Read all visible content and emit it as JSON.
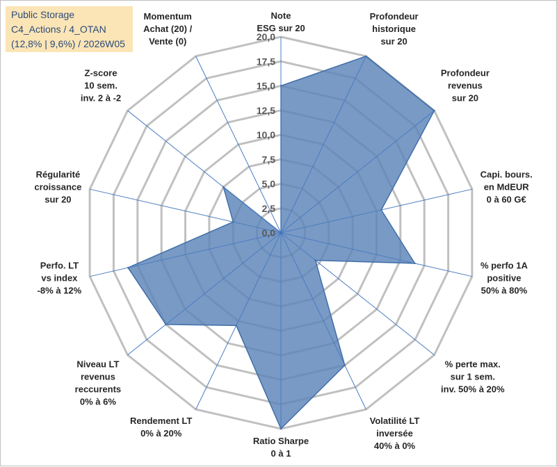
{
  "title": {
    "line1": "Public Storage",
    "line2": "C4_Actions / 4_OTAN",
    "line3": "(12,8% | 9,6%) / 2026W05"
  },
  "colors": {
    "fill": "#5b84b8",
    "fill_opacity": 0.82,
    "stroke": "#3f6ea9",
    "grid": "#c0c0c0",
    "spoke": "#4a7cc0",
    "title_bg": "#fbe5b6",
    "title_text": "#2b4a7a"
  },
  "chart_data": {
    "type": "radar",
    "title": "Public Storage",
    "rmin": 0,
    "rmax": 20,
    "tick_step": 2.5,
    "tick_labels": [
      "0,0",
      "2,5",
      "5,0",
      "7,5",
      "10,0",
      "12,5",
      "15,0",
      "17,5",
      "20,0"
    ],
    "axes": [
      {
        "label": [
          "Note",
          "ESG sur 20"
        ],
        "value": 15.0
      },
      {
        "label": [
          "Profondeur",
          "historique",
          "sur 20"
        ],
        "value": 20.0
      },
      {
        "label": [
          "Profondeur",
          "revenus",
          "sur 20"
        ],
        "value": 20.0
      },
      {
        "label": [
          "Capi. bours.",
          "en MdEUR",
          "0 à 60 G€"
        ],
        "value": 10.5
      },
      {
        "label": [
          "% perfo 1A",
          "positive",
          "50% à 80%"
        ],
        "value": 14.0
      },
      {
        "label": [
          "% perte max.",
          "sur 1 sem.",
          "inv. 50% à 20%"
        ],
        "value": 4.5
      },
      {
        "label": [
          "Volatilité LT",
          "inversée",
          "40% à 0%"
        ],
        "value": 15.0
      },
      {
        "label": [
          "Ratio Sharpe",
          "0 à 1"
        ],
        "value": 20.0
      },
      {
        "label": [
          "Rendement LT",
          "0% à 20%"
        ],
        "value": 10.5
      },
      {
        "label": [
          "Niveau LT",
          "revenus",
          "reccurents",
          "0% à 6%"
        ],
        "value": 15.0
      },
      {
        "label": [
          "Perfo. LT",
          "vs index",
          "-8% à 12%"
        ],
        "value": 16.0
      },
      {
        "label": [
          "Régularité",
          "croissance",
          "sur 20"
        ],
        "value": 5.0
      },
      {
        "label": [
          "Z-score",
          "10 sem.",
          "inv. 2 à -2"
        ],
        "value": 7.5
      },
      {
        "label": [
          "Momentum",
          "Achat (20) /",
          "Vente (0)"
        ],
        "value": 0.0
      }
    ]
  }
}
